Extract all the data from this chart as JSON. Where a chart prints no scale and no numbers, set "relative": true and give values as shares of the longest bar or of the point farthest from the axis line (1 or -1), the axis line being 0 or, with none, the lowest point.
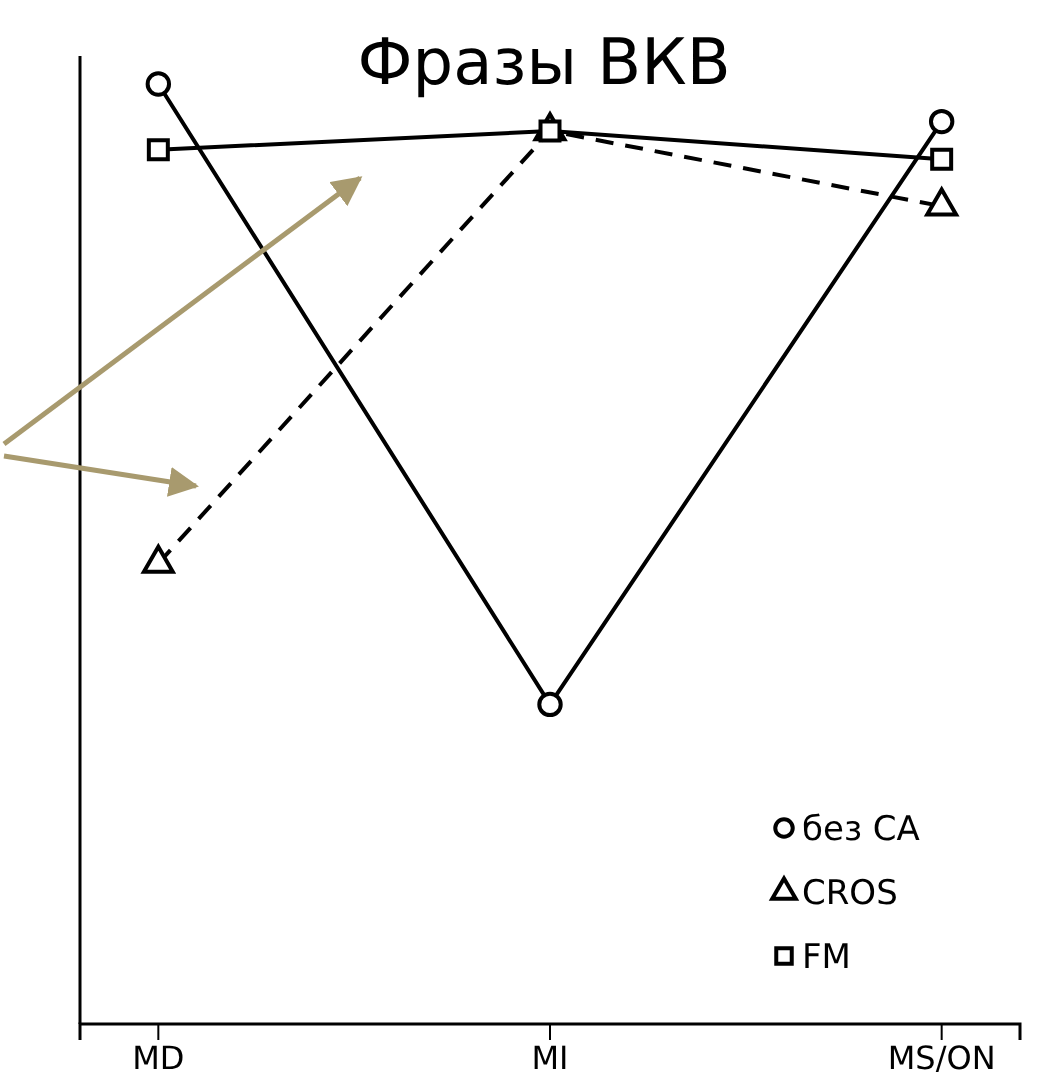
{
  "chart_data": {
    "type": "line",
    "title": "Фразы ВКВ",
    "relative": true,
    "categories": [
      "MD",
      "MI",
      "MS/ON"
    ],
    "tick_labels": "x",
    "legend": "bottom right",
    "series": [
      {
        "name": "без CA",
        "color": "#000000",
        "marker": "circle",
        "line_style": "solid",
        "values": [
          1,
          0.34,
          0.96
        ]
      },
      {
        "name": "CROS",
        "color": "#000000",
        "marker": "triangle",
        "line_style": "dashed",
        "values": [
          0.49,
          0.95,
          0.87
        ]
      },
      {
        "name": "FM",
        "color": "#000000",
        "marker": "square",
        "line_style": "solid",
        "values": [
          0.93,
          0.95,
          0.92
        ]
      }
    ]
  }
}
